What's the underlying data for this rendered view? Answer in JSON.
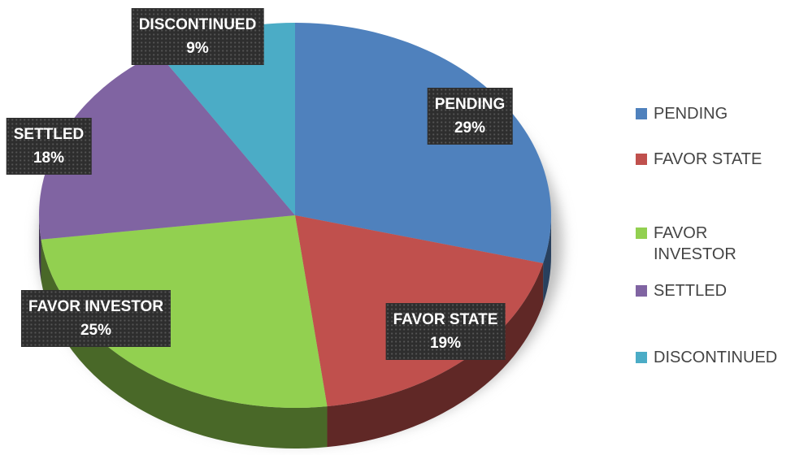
{
  "chart_data": {
    "type": "pie",
    "categories": [
      "PENDING",
      "FAVOR STATE",
      "FAVOR INVESTOR",
      "SETTLED",
      "DISCONTINUED"
    ],
    "values": [
      29,
      19,
      25,
      18,
      9
    ],
    "value_labels": [
      "29%",
      "19%",
      "25%",
      "18%",
      "9%"
    ],
    "colors": [
      "#4f81bd",
      "#c0504d",
      "#92d050",
      "#8064a2",
      "#4bacc6"
    ],
    "legend": "right"
  }
}
